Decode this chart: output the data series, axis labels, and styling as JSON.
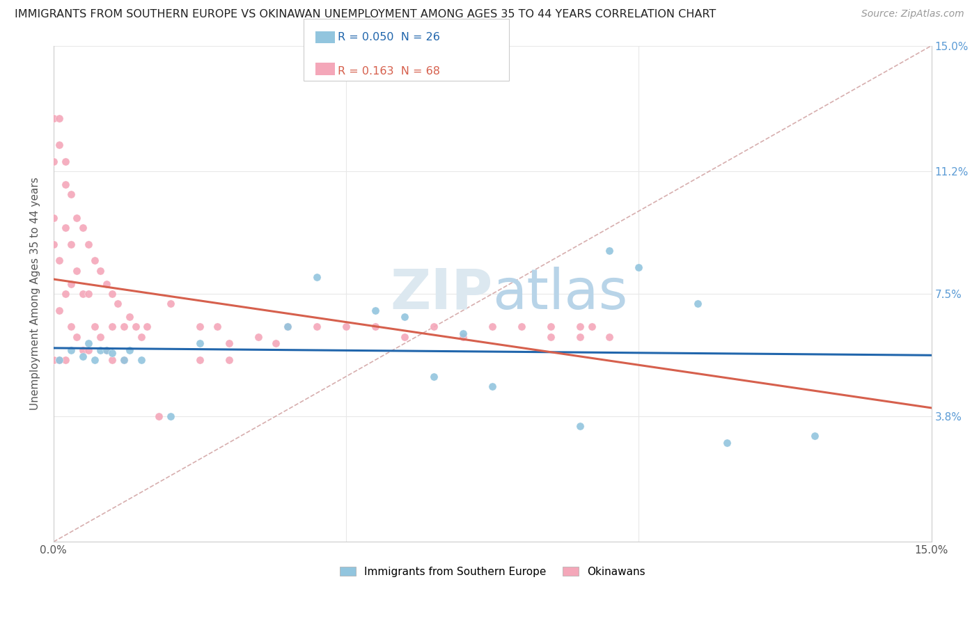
{
  "title": "IMMIGRANTS FROM SOUTHERN EUROPE VS OKINAWAN UNEMPLOYMENT AMONG AGES 35 TO 44 YEARS CORRELATION CHART",
  "source": "Source: ZipAtlas.com",
  "ylabel": "Unemployment Among Ages 35 to 44 years",
  "xmin": 0.0,
  "xmax": 0.15,
  "ymin": 0.0,
  "ymax": 0.15,
  "ytick_vals": [
    0.038,
    0.075,
    0.112,
    0.15
  ],
  "ytick_labels": [
    "3.8%",
    "7.5%",
    "11.2%",
    "15.0%"
  ],
  "legend_blue_R": "0.050",
  "legend_blue_N": "26",
  "legend_pink_R": "0.163",
  "legend_pink_N": "68",
  "legend_label_blue": "Immigrants from Southern Europe",
  "legend_label_pink": "Okinawans",
  "blue_color": "#92c5de",
  "pink_color": "#f4a7b9",
  "blue_line_color": "#2166ac",
  "pink_line_color": "#d6604d",
  "diagonal_color": "#d0a0a0",
  "watermark_color": "#dce8f0",
  "background_color": "#ffffff",
  "grid_color": "#e8e8e8",
  "blue_x": [
    0.001,
    0.003,
    0.005,
    0.006,
    0.007,
    0.008,
    0.009,
    0.01,
    0.012,
    0.013,
    0.015,
    0.02,
    0.025,
    0.04,
    0.045,
    0.055,
    0.06,
    0.065,
    0.07,
    0.075,
    0.09,
    0.095,
    0.1,
    0.115,
    0.13,
    0.11
  ],
  "blue_y": [
    0.055,
    0.058,
    0.056,
    0.06,
    0.055,
    0.058,
    0.058,
    0.057,
    0.055,
    0.058,
    0.055,
    0.038,
    0.06,
    0.065,
    0.08,
    0.07,
    0.068,
    0.05,
    0.063,
    0.047,
    0.035,
    0.088,
    0.083,
    0.03,
    0.032,
    0.072
  ],
  "pink_x": [
    0.0,
    0.0,
    0.0,
    0.0,
    0.0,
    0.001,
    0.001,
    0.001,
    0.001,
    0.001,
    0.002,
    0.002,
    0.002,
    0.002,
    0.002,
    0.003,
    0.003,
    0.003,
    0.003,
    0.004,
    0.004,
    0.004,
    0.005,
    0.005,
    0.005,
    0.006,
    0.006,
    0.006,
    0.007,
    0.007,
    0.008,
    0.008,
    0.009,
    0.009,
    0.01,
    0.01,
    0.01,
    0.011,
    0.012,
    0.012,
    0.013,
    0.014,
    0.015,
    0.016,
    0.018,
    0.02,
    0.025,
    0.025,
    0.028,
    0.03,
    0.03,
    0.035,
    0.038,
    0.04,
    0.045,
    0.05,
    0.055,
    0.06,
    0.065,
    0.07,
    0.075,
    0.08,
    0.085,
    0.085,
    0.09,
    0.09,
    0.092,
    0.095
  ],
  "pink_y": [
    0.128,
    0.115,
    0.098,
    0.09,
    0.055,
    0.128,
    0.12,
    0.085,
    0.07,
    0.055,
    0.115,
    0.108,
    0.095,
    0.075,
    0.055,
    0.105,
    0.09,
    0.078,
    0.065,
    0.098,
    0.082,
    0.062,
    0.095,
    0.075,
    0.058,
    0.09,
    0.075,
    0.058,
    0.085,
    0.065,
    0.082,
    0.062,
    0.078,
    0.058,
    0.075,
    0.065,
    0.055,
    0.072,
    0.065,
    0.055,
    0.068,
    0.065,
    0.062,
    0.065,
    0.038,
    0.072,
    0.065,
    0.055,
    0.065,
    0.06,
    0.055,
    0.062,
    0.06,
    0.065,
    0.065,
    0.065,
    0.065,
    0.062,
    0.065,
    0.062,
    0.065,
    0.065,
    0.065,
    0.062,
    0.065,
    0.062,
    0.065,
    0.062
  ]
}
